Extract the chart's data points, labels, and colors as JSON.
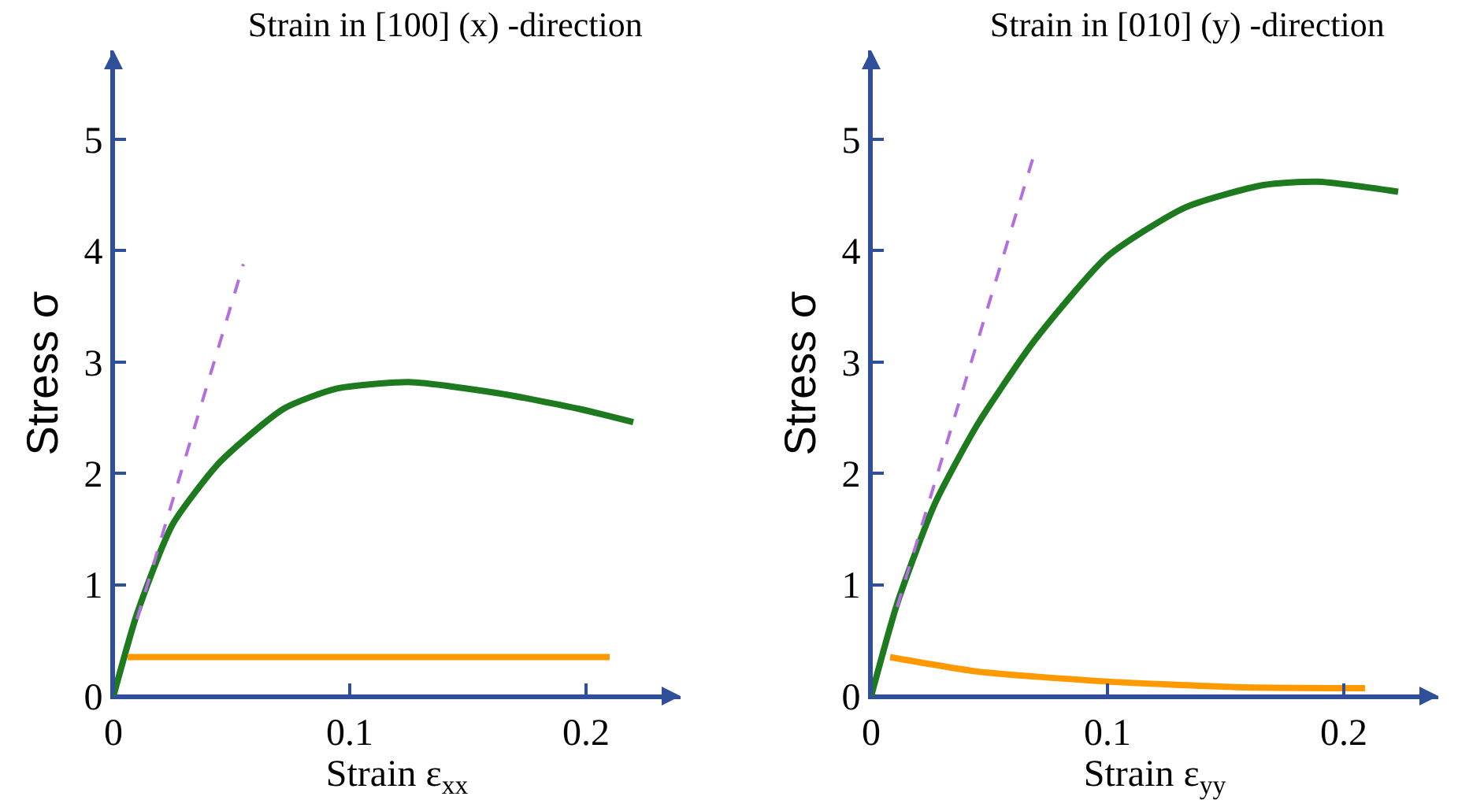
{
  "chart_data": [
    {
      "type": "line",
      "title": "Strain in [100] (x) -direction",
      "xlabel": "Strain ε$_{xx}$",
      "ylabel": "Stress σ",
      "xlim": [
        0,
        0.24
      ],
      "ylim": [
        0,
        5.8
      ],
      "xticks": [
        0,
        0.1,
        0.2
      ],
      "yticks": [
        0,
        1,
        2,
        3,
        4,
        5
      ],
      "grid": false,
      "series": [
        {
          "color": "#1e7a1e",
          "line_style": "solid",
          "x": [
            0,
            0.01,
            0.025,
            0.045,
            0.072,
            0.094,
            0.125,
            0.163,
            0.197,
            0.22
          ],
          "values": [
            0,
            0.74,
            1.54,
            2.1,
            2.58,
            2.76,
            2.82,
            2.72,
            2.58,
            2.46
          ]
        },
        {
          "color": "#b36ee0",
          "line_style": "dashed",
          "x": [
            0.01,
            0.055
          ],
          "values": [
            0.69,
            3.88
          ]
        },
        {
          "color": "#ff9900",
          "line_style": "solid",
          "x": [
            0.006,
            0.21
          ],
          "values": [
            0.35,
            0.35
          ]
        }
      ]
    },
    {
      "type": "line",
      "title": "Strain in [010] (y) -direction",
      "xlabel": "Strain ε$_{yy}$",
      "ylabel": "Stress σ",
      "xlim": [
        0,
        0.24
      ],
      "ylim": [
        0,
        5.8
      ],
      "xticks": [
        0,
        0.1,
        0.2
      ],
      "yticks": [
        0,
        1,
        2,
        3,
        4,
        5
      ],
      "grid": false,
      "series": [
        {
          "color": "#1e7a1e",
          "line_style": "solid",
          "x": [
            0,
            0.011,
            0.027,
            0.045,
            0.069,
            0.1,
            0.133,
            0.166,
            0.189,
            0.223
          ],
          "values": [
            0,
            0.83,
            1.73,
            2.44,
            3.19,
            3.95,
            4.39,
            4.59,
            4.62,
            4.53
          ]
        },
        {
          "color": "#b36ee0",
          "line_style": "dashed",
          "x": [
            0.011,
            0.069
          ],
          "values": [
            0.8,
            4.87
          ]
        },
        {
          "color": "#ff9900",
          "line_style": "solid",
          "x": [
            0.008,
            0.045,
            0.1,
            0.155,
            0.209
          ],
          "values": [
            0.35,
            0.22,
            0.13,
            0.08,
            0.07
          ]
        }
      ]
    }
  ]
}
